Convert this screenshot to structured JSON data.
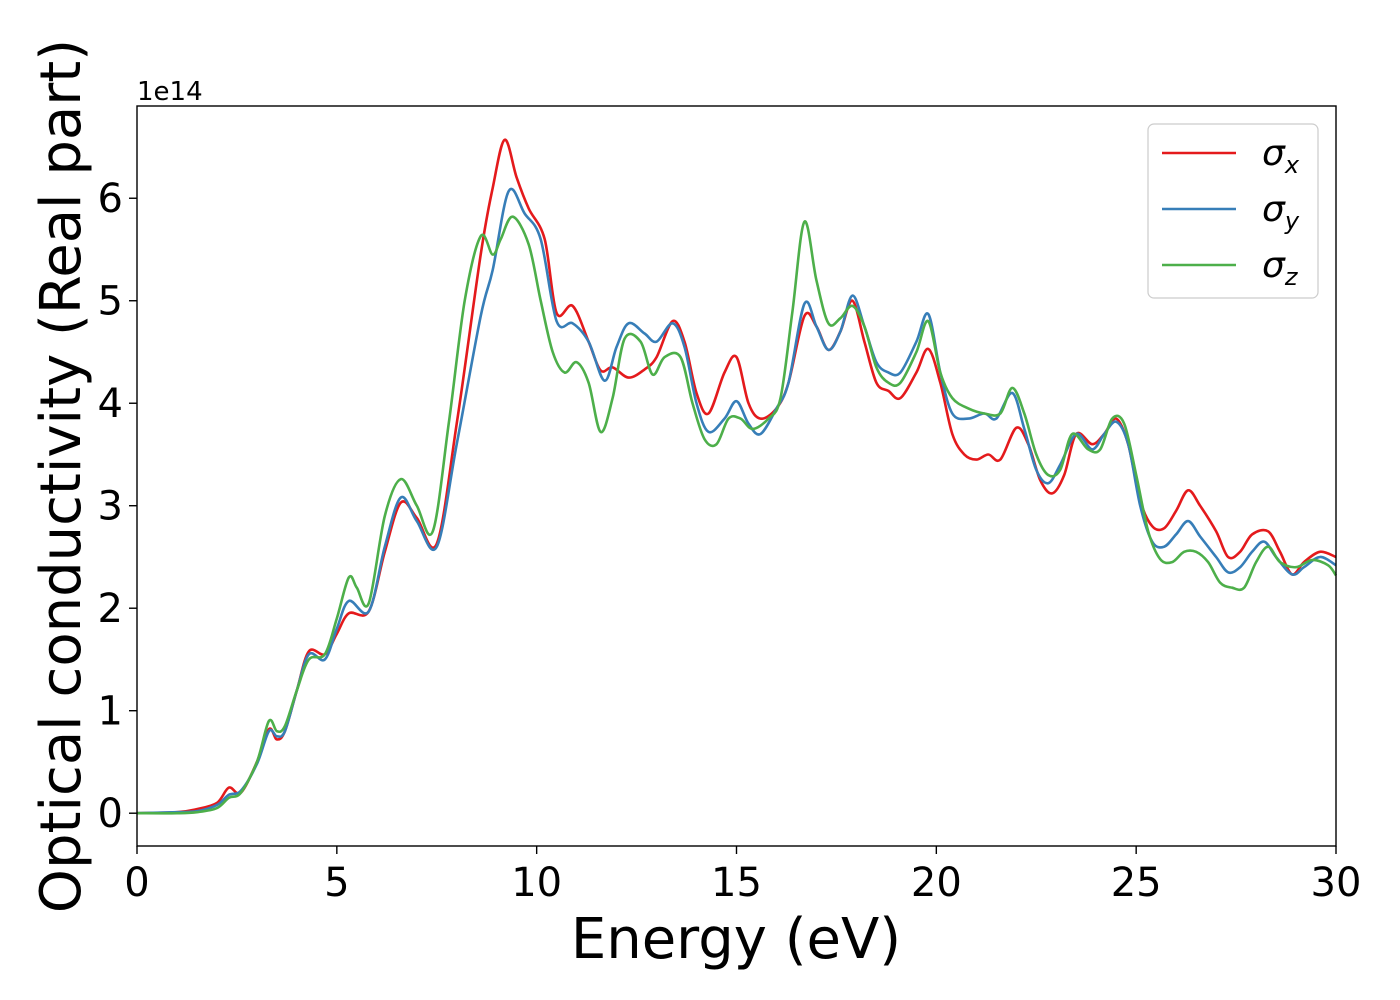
{
  "chart_data": {
    "type": "line",
    "xlabel": "Energy (eV)",
    "ylabel": "Optical conductivity (Real part)",
    "y_offset_label": "1e14",
    "xlim": [
      0,
      30
    ],
    "ylim": [
      -0.32,
      6.9
    ],
    "x_ticks": [
      0,
      5,
      10,
      15,
      20,
      25,
      30
    ],
    "y_ticks": [
      0,
      1,
      2,
      3,
      4,
      5,
      6
    ],
    "grid": false,
    "legend_position": "top-right",
    "series": [
      {
        "name": "σx",
        "symbol": "σ",
        "subscript": "x",
        "color": "#e41a1c",
        "points": [
          [
            0,
            0
          ],
          [
            1,
            0.01
          ],
          [
            1.5,
            0.04
          ],
          [
            2,
            0.1
          ],
          [
            2.3,
            0.25
          ],
          [
            2.6,
            0.2
          ],
          [
            3,
            0.5
          ],
          [
            3.3,
            0.82
          ],
          [
            3.5,
            0.72
          ],
          [
            3.7,
            0.8
          ],
          [
            4,
            1.2
          ],
          [
            4.3,
            1.58
          ],
          [
            4.7,
            1.55
          ],
          [
            5,
            1.75
          ],
          [
            5.3,
            1.95
          ],
          [
            5.8,
            1.97
          ],
          [
            6.2,
            2.55
          ],
          [
            6.6,
            3.03
          ],
          [
            7,
            2.88
          ],
          [
            7.5,
            2.63
          ],
          [
            8,
            3.8
          ],
          [
            8.6,
            5.45
          ],
          [
            8.9,
            6.1
          ],
          [
            9.2,
            6.57
          ],
          [
            9.5,
            6.2
          ],
          [
            9.8,
            5.9
          ],
          [
            10.2,
            5.6
          ],
          [
            10.5,
            4.88
          ],
          [
            10.9,
            4.95
          ],
          [
            11.3,
            4.6
          ],
          [
            11.6,
            4.32
          ],
          [
            11.9,
            4.35
          ],
          [
            12.3,
            4.25
          ],
          [
            12.7,
            4.33
          ],
          [
            13,
            4.45
          ],
          [
            13.4,
            4.8
          ],
          [
            13.7,
            4.6
          ],
          [
            14,
            4.1
          ],
          [
            14.3,
            3.9
          ],
          [
            14.7,
            4.3
          ],
          [
            15,
            4.45
          ],
          [
            15.3,
            4.0
          ],
          [
            15.6,
            3.85
          ],
          [
            16,
            3.95
          ],
          [
            16.3,
            4.2
          ],
          [
            16.7,
            4.85
          ],
          [
            17,
            4.75
          ],
          [
            17.3,
            4.52
          ],
          [
            17.6,
            4.7
          ],
          [
            17.9,
            5.0
          ],
          [
            18.2,
            4.6
          ],
          [
            18.5,
            4.2
          ],
          [
            18.8,
            4.12
          ],
          [
            19.1,
            4.05
          ],
          [
            19.5,
            4.3
          ],
          [
            19.8,
            4.53
          ],
          [
            20.1,
            4.2
          ],
          [
            20.4,
            3.7
          ],
          [
            20.7,
            3.5
          ],
          [
            21,
            3.45
          ],
          [
            21.3,
            3.5
          ],
          [
            21.6,
            3.45
          ],
          [
            22,
            3.76
          ],
          [
            22.3,
            3.6
          ],
          [
            22.6,
            3.25
          ],
          [
            22.9,
            3.12
          ],
          [
            23.2,
            3.3
          ],
          [
            23.5,
            3.7
          ],
          [
            23.9,
            3.6
          ],
          [
            24.2,
            3.7
          ],
          [
            24.5,
            3.85
          ],
          [
            24.8,
            3.6
          ],
          [
            25.1,
            3.05
          ],
          [
            25.4,
            2.8
          ],
          [
            25.7,
            2.78
          ],
          [
            26,
            2.95
          ],
          [
            26.3,
            3.15
          ],
          [
            26.6,
            3.0
          ],
          [
            27,
            2.75
          ],
          [
            27.3,
            2.5
          ],
          [
            27.6,
            2.55
          ],
          [
            27.9,
            2.72
          ],
          [
            28.3,
            2.75
          ],
          [
            28.6,
            2.55
          ],
          [
            28.9,
            2.33
          ],
          [
            29.2,
            2.45
          ],
          [
            29.6,
            2.55
          ],
          [
            30,
            2.5
          ]
        ]
      },
      {
        "name": "σy",
        "symbol": "σ",
        "subscript": "y",
        "color": "#377eb8",
        "points": [
          [
            0,
            0
          ],
          [
            1,
            0.01
          ],
          [
            1.5,
            0.02
          ],
          [
            2,
            0.08
          ],
          [
            2.3,
            0.18
          ],
          [
            2.6,
            0.22
          ],
          [
            3,
            0.48
          ],
          [
            3.3,
            0.8
          ],
          [
            3.5,
            0.75
          ],
          [
            3.7,
            0.8
          ],
          [
            4,
            1.2
          ],
          [
            4.3,
            1.55
          ],
          [
            4.7,
            1.5
          ],
          [
            5,
            1.8
          ],
          [
            5.3,
            2.07
          ],
          [
            5.8,
            1.97
          ],
          [
            6.2,
            2.6
          ],
          [
            6.6,
            3.08
          ],
          [
            7,
            2.85
          ],
          [
            7.5,
            2.6
          ],
          [
            8,
            3.6
          ],
          [
            8.6,
            4.85
          ],
          [
            8.9,
            5.3
          ],
          [
            9.3,
            6.07
          ],
          [
            9.7,
            5.85
          ],
          [
            10.1,
            5.6
          ],
          [
            10.5,
            4.8
          ],
          [
            10.9,
            4.78
          ],
          [
            11.3,
            4.6
          ],
          [
            11.7,
            4.22
          ],
          [
            12,
            4.55
          ],
          [
            12.3,
            4.78
          ],
          [
            12.7,
            4.68
          ],
          [
            13,
            4.6
          ],
          [
            13.4,
            4.78
          ],
          [
            13.7,
            4.55
          ],
          [
            14,
            4.0
          ],
          [
            14.3,
            3.72
          ],
          [
            14.7,
            3.85
          ],
          [
            15,
            4.02
          ],
          [
            15.3,
            3.8
          ],
          [
            15.6,
            3.7
          ],
          [
            16,
            3.95
          ],
          [
            16.3,
            4.2
          ],
          [
            16.7,
            4.97
          ],
          [
            17,
            4.75
          ],
          [
            17.3,
            4.52
          ],
          [
            17.6,
            4.7
          ],
          [
            17.9,
            5.05
          ],
          [
            18.2,
            4.75
          ],
          [
            18.5,
            4.4
          ],
          [
            18.8,
            4.3
          ],
          [
            19.1,
            4.3
          ],
          [
            19.5,
            4.6
          ],
          [
            19.8,
            4.87
          ],
          [
            20.1,
            4.3
          ],
          [
            20.4,
            3.9
          ],
          [
            20.8,
            3.85
          ],
          [
            21.2,
            3.9
          ],
          [
            21.5,
            3.85
          ],
          [
            21.9,
            4.1
          ],
          [
            22.2,
            3.75
          ],
          [
            22.5,
            3.35
          ],
          [
            22.8,
            3.22
          ],
          [
            23.1,
            3.4
          ],
          [
            23.5,
            3.7
          ],
          [
            23.9,
            3.55
          ],
          [
            24.2,
            3.7
          ],
          [
            24.5,
            3.82
          ],
          [
            24.8,
            3.6
          ],
          [
            25.1,
            3.0
          ],
          [
            25.4,
            2.65
          ],
          [
            25.7,
            2.6
          ],
          [
            26,
            2.72
          ],
          [
            26.3,
            2.85
          ],
          [
            26.6,
            2.7
          ],
          [
            27,
            2.5
          ],
          [
            27.3,
            2.35
          ],
          [
            27.6,
            2.4
          ],
          [
            27.9,
            2.55
          ],
          [
            28.2,
            2.65
          ],
          [
            28.5,
            2.5
          ],
          [
            28.9,
            2.33
          ],
          [
            29.2,
            2.4
          ],
          [
            29.6,
            2.5
          ],
          [
            30,
            2.42
          ]
        ]
      },
      {
        "name": "σz",
        "symbol": "σ",
        "subscript": "z",
        "color": "#4daf4a",
        "points": [
          [
            0,
            0
          ],
          [
            1,
            0.0
          ],
          [
            1.5,
            0.01
          ],
          [
            2,
            0.05
          ],
          [
            2.3,
            0.15
          ],
          [
            2.6,
            0.2
          ],
          [
            3,
            0.5
          ],
          [
            3.3,
            0.9
          ],
          [
            3.5,
            0.8
          ],
          [
            3.7,
            0.85
          ],
          [
            4,
            1.2
          ],
          [
            4.3,
            1.5
          ],
          [
            4.7,
            1.55
          ],
          [
            5,
            1.9
          ],
          [
            5.3,
            2.3
          ],
          [
            5.5,
            2.2
          ],
          [
            5.8,
            2.05
          ],
          [
            6.2,
            2.9
          ],
          [
            6.6,
            3.26
          ],
          [
            7,
            3.0
          ],
          [
            7.4,
            2.75
          ],
          [
            7.8,
            3.8
          ],
          [
            8.2,
            5.0
          ],
          [
            8.6,
            5.63
          ],
          [
            8.9,
            5.45
          ],
          [
            9.1,
            5.6
          ],
          [
            9.4,
            5.82
          ],
          [
            9.8,
            5.55
          ],
          [
            10.1,
            5.0
          ],
          [
            10.4,
            4.5
          ],
          [
            10.7,
            4.3
          ],
          [
            11,
            4.4
          ],
          [
            11.3,
            4.2
          ],
          [
            11.6,
            3.72
          ],
          [
            11.9,
            4.05
          ],
          [
            12.2,
            4.63
          ],
          [
            12.6,
            4.6
          ],
          [
            12.9,
            4.28
          ],
          [
            13.2,
            4.45
          ],
          [
            13.6,
            4.45
          ],
          [
            13.9,
            4.0
          ],
          [
            14.2,
            3.65
          ],
          [
            14.5,
            3.6
          ],
          [
            14.8,
            3.85
          ],
          [
            15.1,
            3.85
          ],
          [
            15.4,
            3.75
          ],
          [
            15.8,
            3.85
          ],
          [
            16.1,
            4.05
          ],
          [
            16.4,
            4.9
          ],
          [
            16.7,
            5.77
          ],
          [
            17,
            5.2
          ],
          [
            17.3,
            4.78
          ],
          [
            17.6,
            4.83
          ],
          [
            17.9,
            4.95
          ],
          [
            18.2,
            4.75
          ],
          [
            18.5,
            4.35
          ],
          [
            18.8,
            4.2
          ],
          [
            19.1,
            4.2
          ],
          [
            19.5,
            4.5
          ],
          [
            19.8,
            4.8
          ],
          [
            20.1,
            4.3
          ],
          [
            20.4,
            4.05
          ],
          [
            20.8,
            3.95
          ],
          [
            21.2,
            3.9
          ],
          [
            21.6,
            3.9
          ],
          [
            21.9,
            4.15
          ],
          [
            22.2,
            3.9
          ],
          [
            22.5,
            3.5
          ],
          [
            22.8,
            3.3
          ],
          [
            23.1,
            3.35
          ],
          [
            23.4,
            3.7
          ],
          [
            23.8,
            3.55
          ],
          [
            24.1,
            3.55
          ],
          [
            24.4,
            3.85
          ],
          [
            24.7,
            3.8
          ],
          [
            25,
            3.3
          ],
          [
            25.3,
            2.75
          ],
          [
            25.6,
            2.48
          ],
          [
            25.9,
            2.45
          ],
          [
            26.2,
            2.55
          ],
          [
            26.5,
            2.55
          ],
          [
            26.8,
            2.45
          ],
          [
            27.1,
            2.25
          ],
          [
            27.4,
            2.2
          ],
          [
            27.7,
            2.2
          ],
          [
            28,
            2.45
          ],
          [
            28.3,
            2.6
          ],
          [
            28.6,
            2.45
          ],
          [
            29,
            2.4
          ],
          [
            29.4,
            2.47
          ],
          [
            29.8,
            2.42
          ],
          [
            30,
            2.32
          ]
        ]
      }
    ]
  }
}
